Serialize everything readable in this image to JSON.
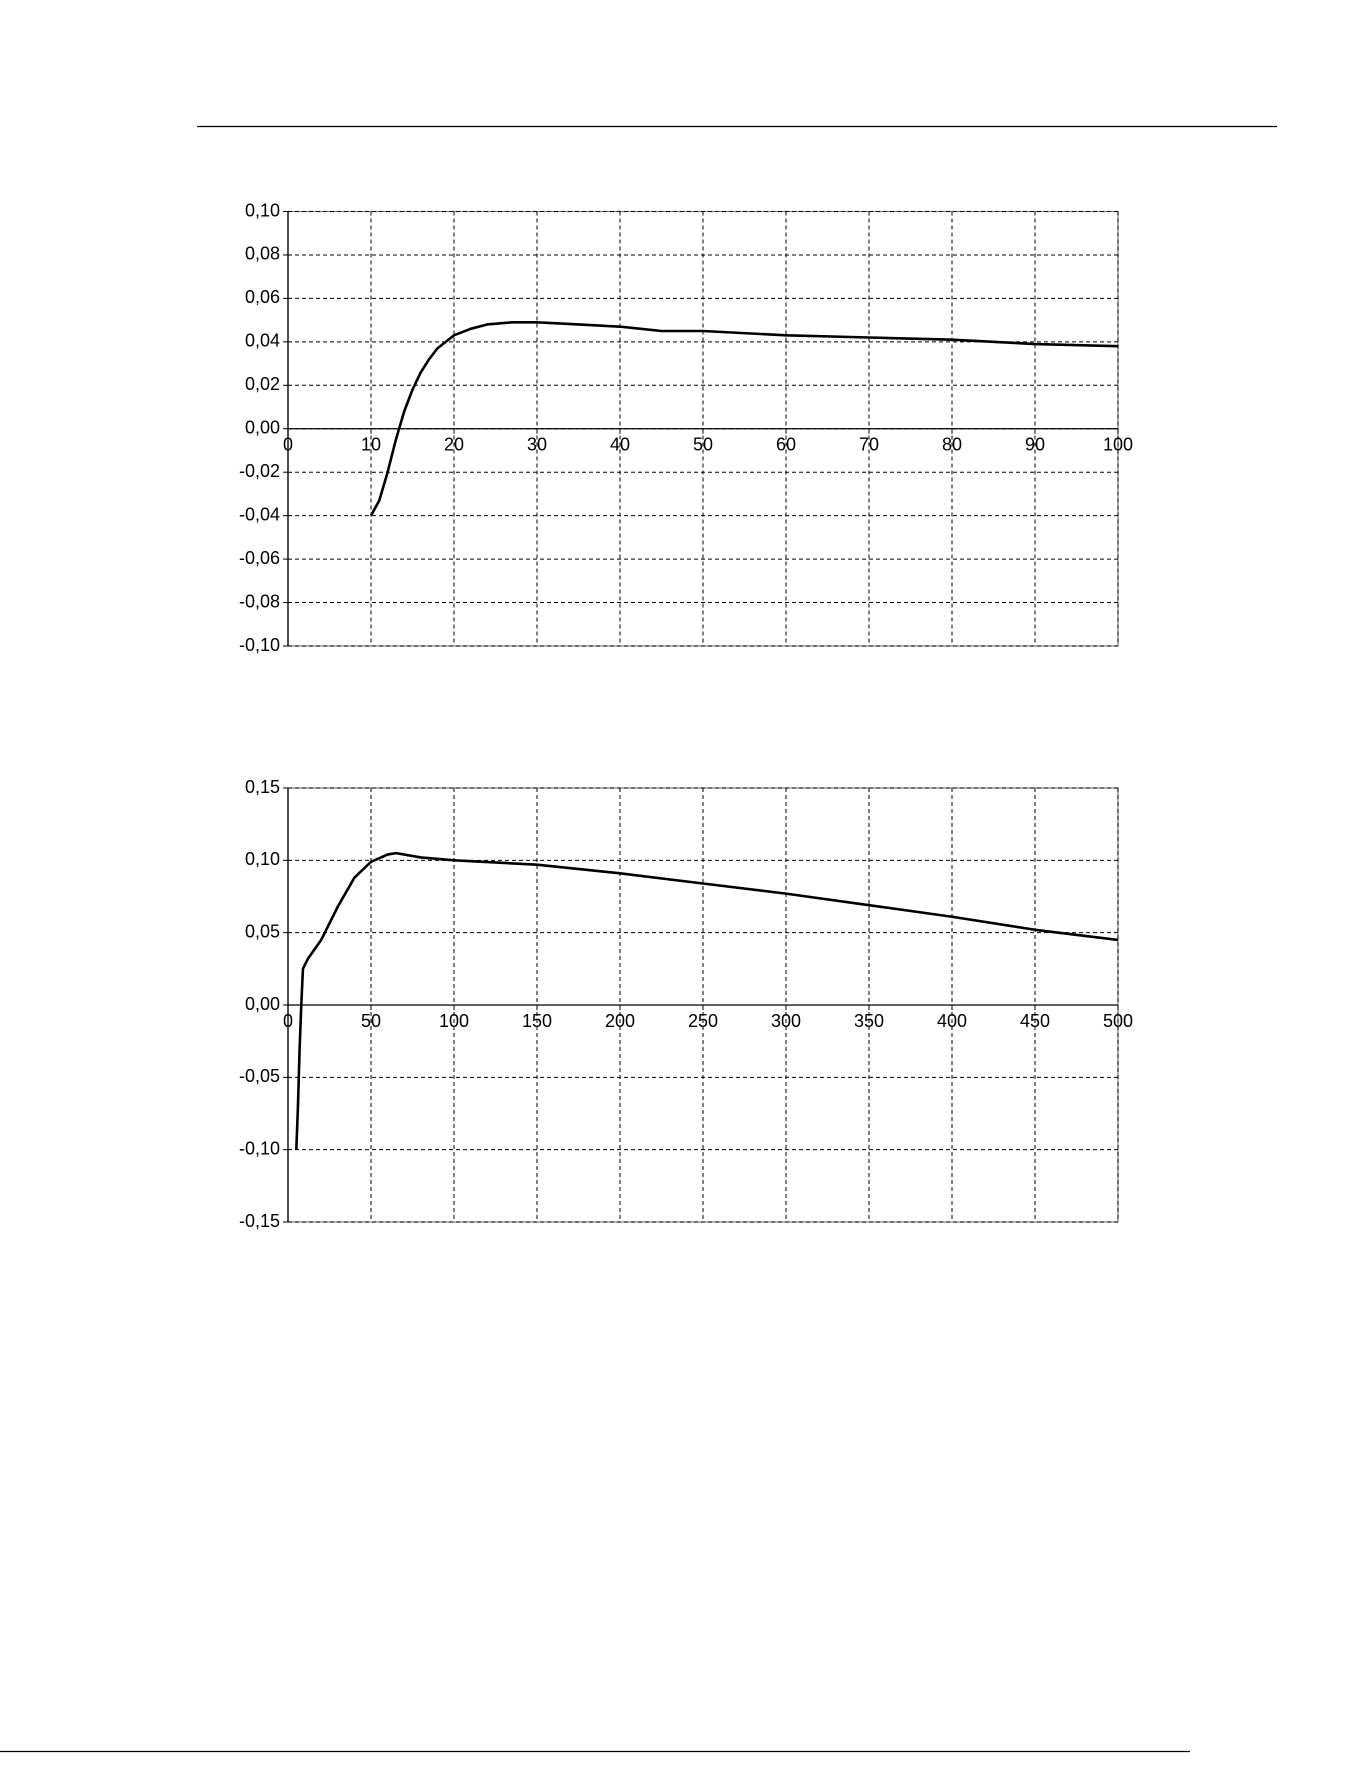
{
  "chart_data": [
    {
      "type": "line",
      "x": [
        10,
        11,
        12,
        13,
        14,
        15,
        16,
        17,
        18,
        19,
        20,
        22,
        24,
        27,
        30,
        35,
        40,
        45,
        50,
        60,
        70,
        80,
        90,
        100
      ],
      "values": [
        -0.04,
        -0.033,
        -0.02,
        -0.005,
        0.008,
        0.018,
        0.026,
        0.032,
        0.037,
        0.04,
        0.043,
        0.046,
        0.048,
        0.049,
        0.049,
        0.048,
        0.047,
        0.045,
        0.045,
        0.043,
        0.042,
        0.041,
        0.039,
        0.038
      ],
      "color": "#000000",
      "xlim": [
        0,
        100
      ],
      "xticks": [
        0,
        10,
        20,
        30,
        40,
        50,
        60,
        70,
        80,
        90,
        100
      ],
      "ylim": [
        -0.1,
        0.1
      ],
      "yticks": [
        {
          "value": -0.1,
          "label": "-0,10"
        },
        {
          "value": -0.08,
          "label": "-0,08"
        },
        {
          "value": -0.06,
          "label": "-0,06"
        },
        {
          "value": -0.04,
          "label": "-0,04"
        },
        {
          "value": -0.02,
          "label": "-0,02"
        },
        {
          "value": 0,
          "label": "0,00"
        },
        {
          "value": 0.02,
          "label": "0,02"
        },
        {
          "value": 0.04,
          "label": "0,04"
        },
        {
          "value": 0.06,
          "label": "0,06"
        },
        {
          "value": 0.08,
          "label": "0,08"
        },
        {
          "value": 0.1,
          "label": "0,10"
        }
      ],
      "grid": true
    },
    {
      "type": "line",
      "x": [
        5,
        6,
        7,
        8,
        9,
        12,
        20,
        30,
        40,
        50,
        60,
        65,
        80,
        100,
        150,
        200,
        250,
        300,
        350,
        400,
        450,
        500
      ],
      "values": [
        -0.1,
        -0.07,
        -0.03,
        0,
        0.025,
        0.032,
        0.045,
        0.068,
        0.088,
        0.099,
        0.104,
        0.105,
        0.102,
        0.1,
        0.097,
        0.091,
        0.084,
        0.077,
        0.069,
        0.061,
        0.052,
        0.045
      ],
      "color": "#000000",
      "xlim": [
        0,
        500
      ],
      "xticks": [
        0,
        50,
        100,
        150,
        200,
        250,
        300,
        350,
        400,
        450,
        500
      ],
      "ylim": [
        -0.15,
        0.15
      ],
      "yticks": [
        {
          "value": -0.15,
          "label": "-0,15"
        },
        {
          "value": -0.1,
          "label": "-0,10"
        },
        {
          "value": -0.05,
          "label": "-0,05"
        },
        {
          "value": 0,
          "label": "0,00"
        },
        {
          "value": 0.05,
          "label": "0,05"
        },
        {
          "value": 0.1,
          "label": "0,10"
        },
        {
          "value": 0.15,
          "label": "0,15"
        }
      ],
      "grid": true
    }
  ]
}
